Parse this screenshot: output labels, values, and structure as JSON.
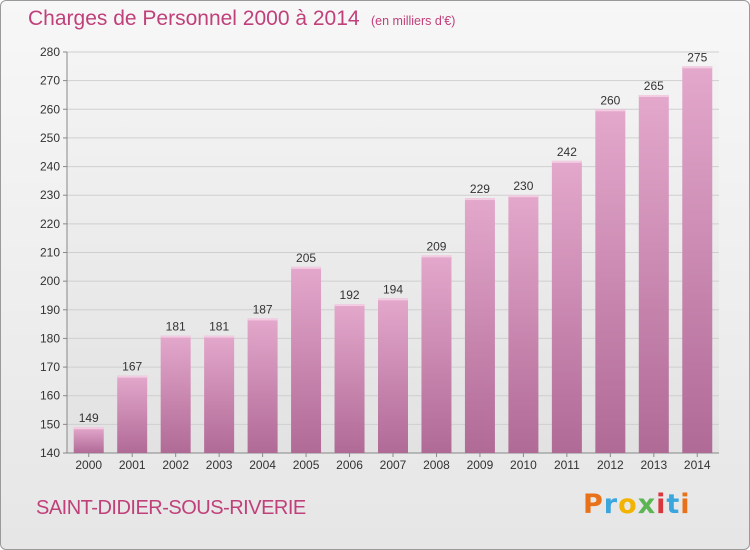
{
  "header": {
    "title": "Charges de Personnel 2000 à 2014",
    "unit": "(en milliers d'€)"
  },
  "footer": {
    "place": "SAINT-DIDIER-SOUS-RIVERIE",
    "logo": "Proxiti",
    "logo_colors": [
      "#e8711a",
      "#3aa6dd",
      "#f2b400",
      "#5ab552",
      "#d9373c",
      "#3aa6dd",
      "#e8711a"
    ]
  },
  "colors": {
    "title": "#c0407a",
    "bar_top": "#e4a8cc",
    "bar_bottom": "#b06a96",
    "grid": "#cfcfcf"
  },
  "chart_data": {
    "type": "bar",
    "categories": [
      "2000",
      "2001",
      "2002",
      "2003",
      "2004",
      "2005",
      "2006",
      "2007",
      "2008",
      "2009",
      "2010",
      "2011",
      "2012",
      "2013",
      "2014"
    ],
    "values": [
      149,
      167,
      181,
      181,
      187,
      205,
      192,
      194,
      209,
      229,
      230,
      242,
      260,
      265,
      275
    ],
    "ylim": [
      140,
      280
    ],
    "yticks": [
      140,
      150,
      160,
      170,
      180,
      190,
      200,
      210,
      220,
      230,
      240,
      250,
      260,
      270,
      280
    ],
    "grid": true
  }
}
